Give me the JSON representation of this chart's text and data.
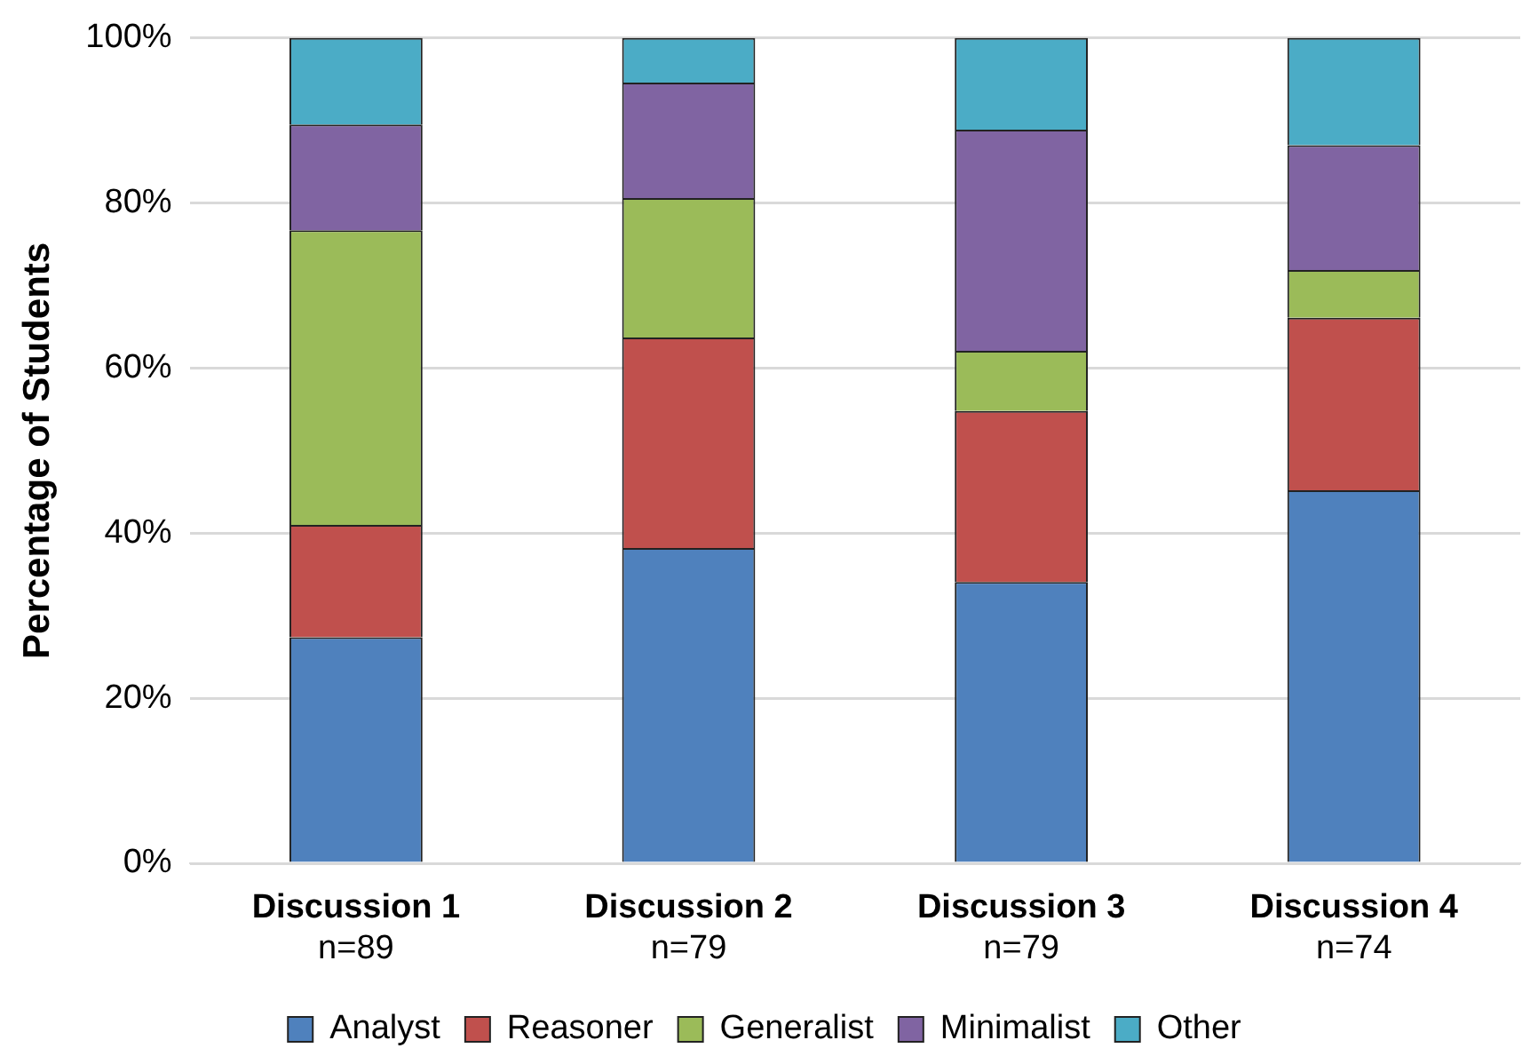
{
  "chart_data": {
    "type": "bar",
    "stacked": true,
    "ylabel": "Percentage of Students",
    "categories": [
      "Discussion 1\nn=89",
      "Discussion 2\nn=79",
      "Discussion 3\nn=79",
      "Discussion 4\nn=74"
    ],
    "series": [
      {
        "name": "Analyst",
        "color": "#4f81bd",
        "values": [
          27.4,
          38.2,
          34.1,
          45.2
        ]
      },
      {
        "name": "Reasoner",
        "color": "#c0504d",
        "values": [
          13.6,
          25.5,
          20.7,
          20.9
        ]
      },
      {
        "name": "Generalist",
        "color": "#9bbb59",
        "values": [
          35.7,
          16.9,
          7.3,
          5.8
        ]
      },
      {
        "name": "Minimalist",
        "color": "#8064a2",
        "values": [
          12.8,
          14.0,
          26.8,
          15.1
        ]
      },
      {
        "name": "Other",
        "color": "#4bacc6",
        "values": [
          10.5,
          5.4,
          11.1,
          13.0
        ]
      }
    ],
    "ylim": [
      0,
      100
    ],
    "yticks": [
      {
        "value": 0,
        "label": "0%"
      },
      {
        "value": 20,
        "label": "20%"
      },
      {
        "value": 40,
        "label": "40%"
      },
      {
        "value": 60,
        "label": "60%"
      },
      {
        "value": 80,
        "label": "80%"
      },
      {
        "value": 100,
        "label": "100%"
      }
    ],
    "grid": "y",
    "legend": "bottom"
  }
}
